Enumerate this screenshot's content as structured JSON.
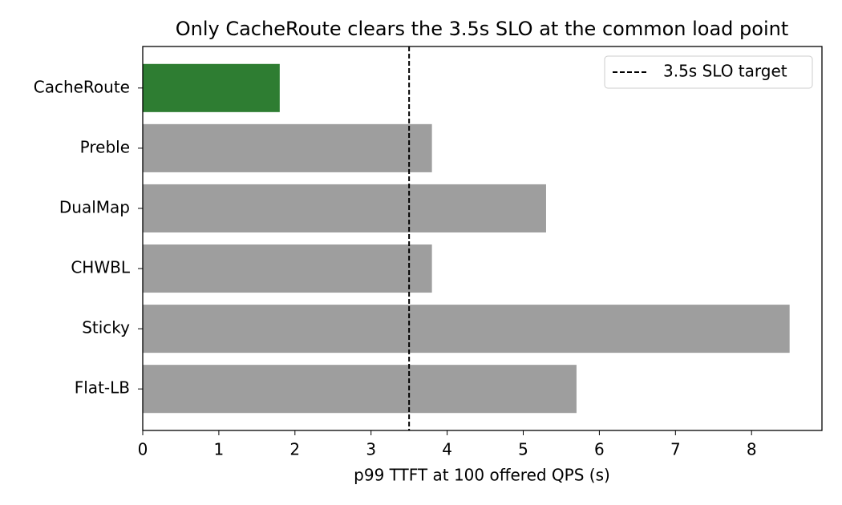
{
  "chart_data": {
    "type": "barh",
    "title": "Only CacheRoute clears the 3.5s SLO at the common load point",
    "x_label": "p99 TTFT at 100 offered QPS (s)",
    "categories": [
      "CacheRoute",
      "Preble",
      "DualMap",
      "CHWBL",
      "Sticky",
      "Flat-LB"
    ],
    "values": [
      1.8,
      3.8,
      5.3,
      3.8,
      8.5,
      5.7
    ],
    "colors": [
      "#2e7d32",
      "#9e9e9e",
      "#9e9e9e",
      "#9e9e9e",
      "#9e9e9e",
      "#9e9e9e"
    ],
    "xlim": [
      0,
      8.925
    ],
    "xticks": [
      0,
      1,
      2,
      3,
      4,
      5,
      6,
      7,
      8
    ],
    "reference_line": {
      "value": 3.5,
      "label": "3.5s SLO target",
      "color": "#000000"
    },
    "legend_position": "upper-right"
  }
}
